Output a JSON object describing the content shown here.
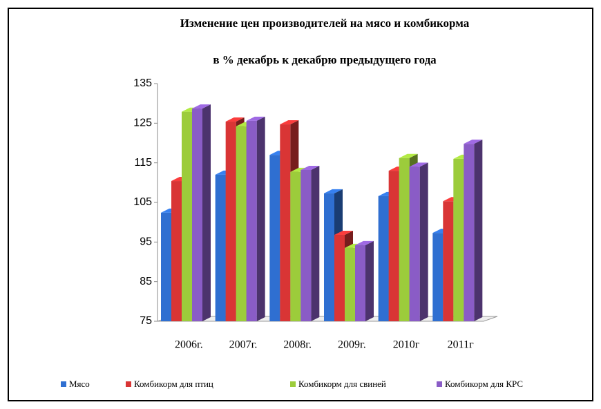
{
  "chart_data": {
    "type": "bar3d",
    "title": "Изменение цен производителей на мясо и комбикорма",
    "subtitle": "в % декабрь к декабрю предыдущего года",
    "categories": [
      "2006г.",
      "2007г.",
      "2008г.",
      "2009г.",
      "2010г",
      "2011г"
    ],
    "series": [
      {
        "name": "Мясо",
        "color": "#2f6fd1",
        "values": [
          102.4,
          112,
          117,
          107.3,
          106.6,
          97.3
        ]
      },
      {
        "name": "Комбикорм для птиц",
        "color": "#d93535",
        "values": [
          110.4,
          125.4,
          124.7,
          96.8,
          113,
          105.3
        ]
      },
      {
        "name": "Комбикорм для свиней",
        "color": "#9ccc3b",
        "values": [
          127.9,
          124.2,
          112.7,
          93.5,
          116.2,
          116
        ]
      },
      {
        "name": "Комбикорм для КРС",
        "color": "#8a5cc6",
        "values": [
          128.7,
          125.6,
          113.2,
          94.2,
          114,
          119.8
        ]
      }
    ],
    "ylim": [
      75,
      135
    ],
    "yticks": [
      75,
      85,
      95,
      105,
      115,
      125,
      135
    ],
    "legend": "bottom"
  }
}
